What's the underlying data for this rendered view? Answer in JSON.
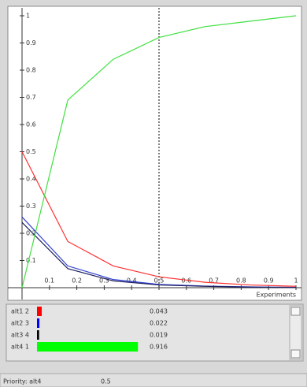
{
  "chart_data": {
    "type": "line",
    "x": [
      0,
      0.167,
      0.333,
      0.5,
      0.667,
      0.833,
      1
    ],
    "series": [
      {
        "color": "#ff3030",
        "values": [
          0.5,
          0.17,
          0.08,
          0.04,
          0.02,
          0.01,
          0.005
        ]
      },
      {
        "color": "#3040d0",
        "values": [
          0.26,
          0.08,
          0.03,
          0.012,
          0.006,
          0.003,
          0.001
        ]
      },
      {
        "color": "#202060",
        "values": [
          0.24,
          0.07,
          0.025,
          0.01,
          0.005,
          0.002,
          0.001
        ]
      },
      {
        "color": "#40e040",
        "values": [
          0,
          0.69,
          0.84,
          0.92,
          0.96,
          0.98,
          1
        ]
      }
    ],
    "xlim": [
      0,
      1
    ],
    "ylim": [
      0,
      1
    ],
    "xticks": [
      0.1,
      0.2,
      0.3,
      0.4,
      0.5,
      0.6,
      0.7,
      0.8,
      0.9,
      1
    ],
    "yticks": [
      0.1,
      0.2,
      0.3,
      0.4,
      0.5,
      0.6,
      0.7,
      0.8,
      0.9,
      1
    ],
    "x_label": "Experiments",
    "marker_x": 0.5
  },
  "panel": {
    "rows": [
      {
        "label": "alt1 2",
        "color": "#ff0000",
        "value": 0.043
      },
      {
        "label": "alt2 3",
        "color": "#0000ff",
        "value": 0.022
      },
      {
        "label": "alt3 4",
        "color": "#000000",
        "value": 0.019
      },
      {
        "label": "alt4 1",
        "color": "#00ff00",
        "value": 0.916
      }
    ]
  },
  "status": {
    "label": "Priority: alt4",
    "value": "0.5"
  }
}
